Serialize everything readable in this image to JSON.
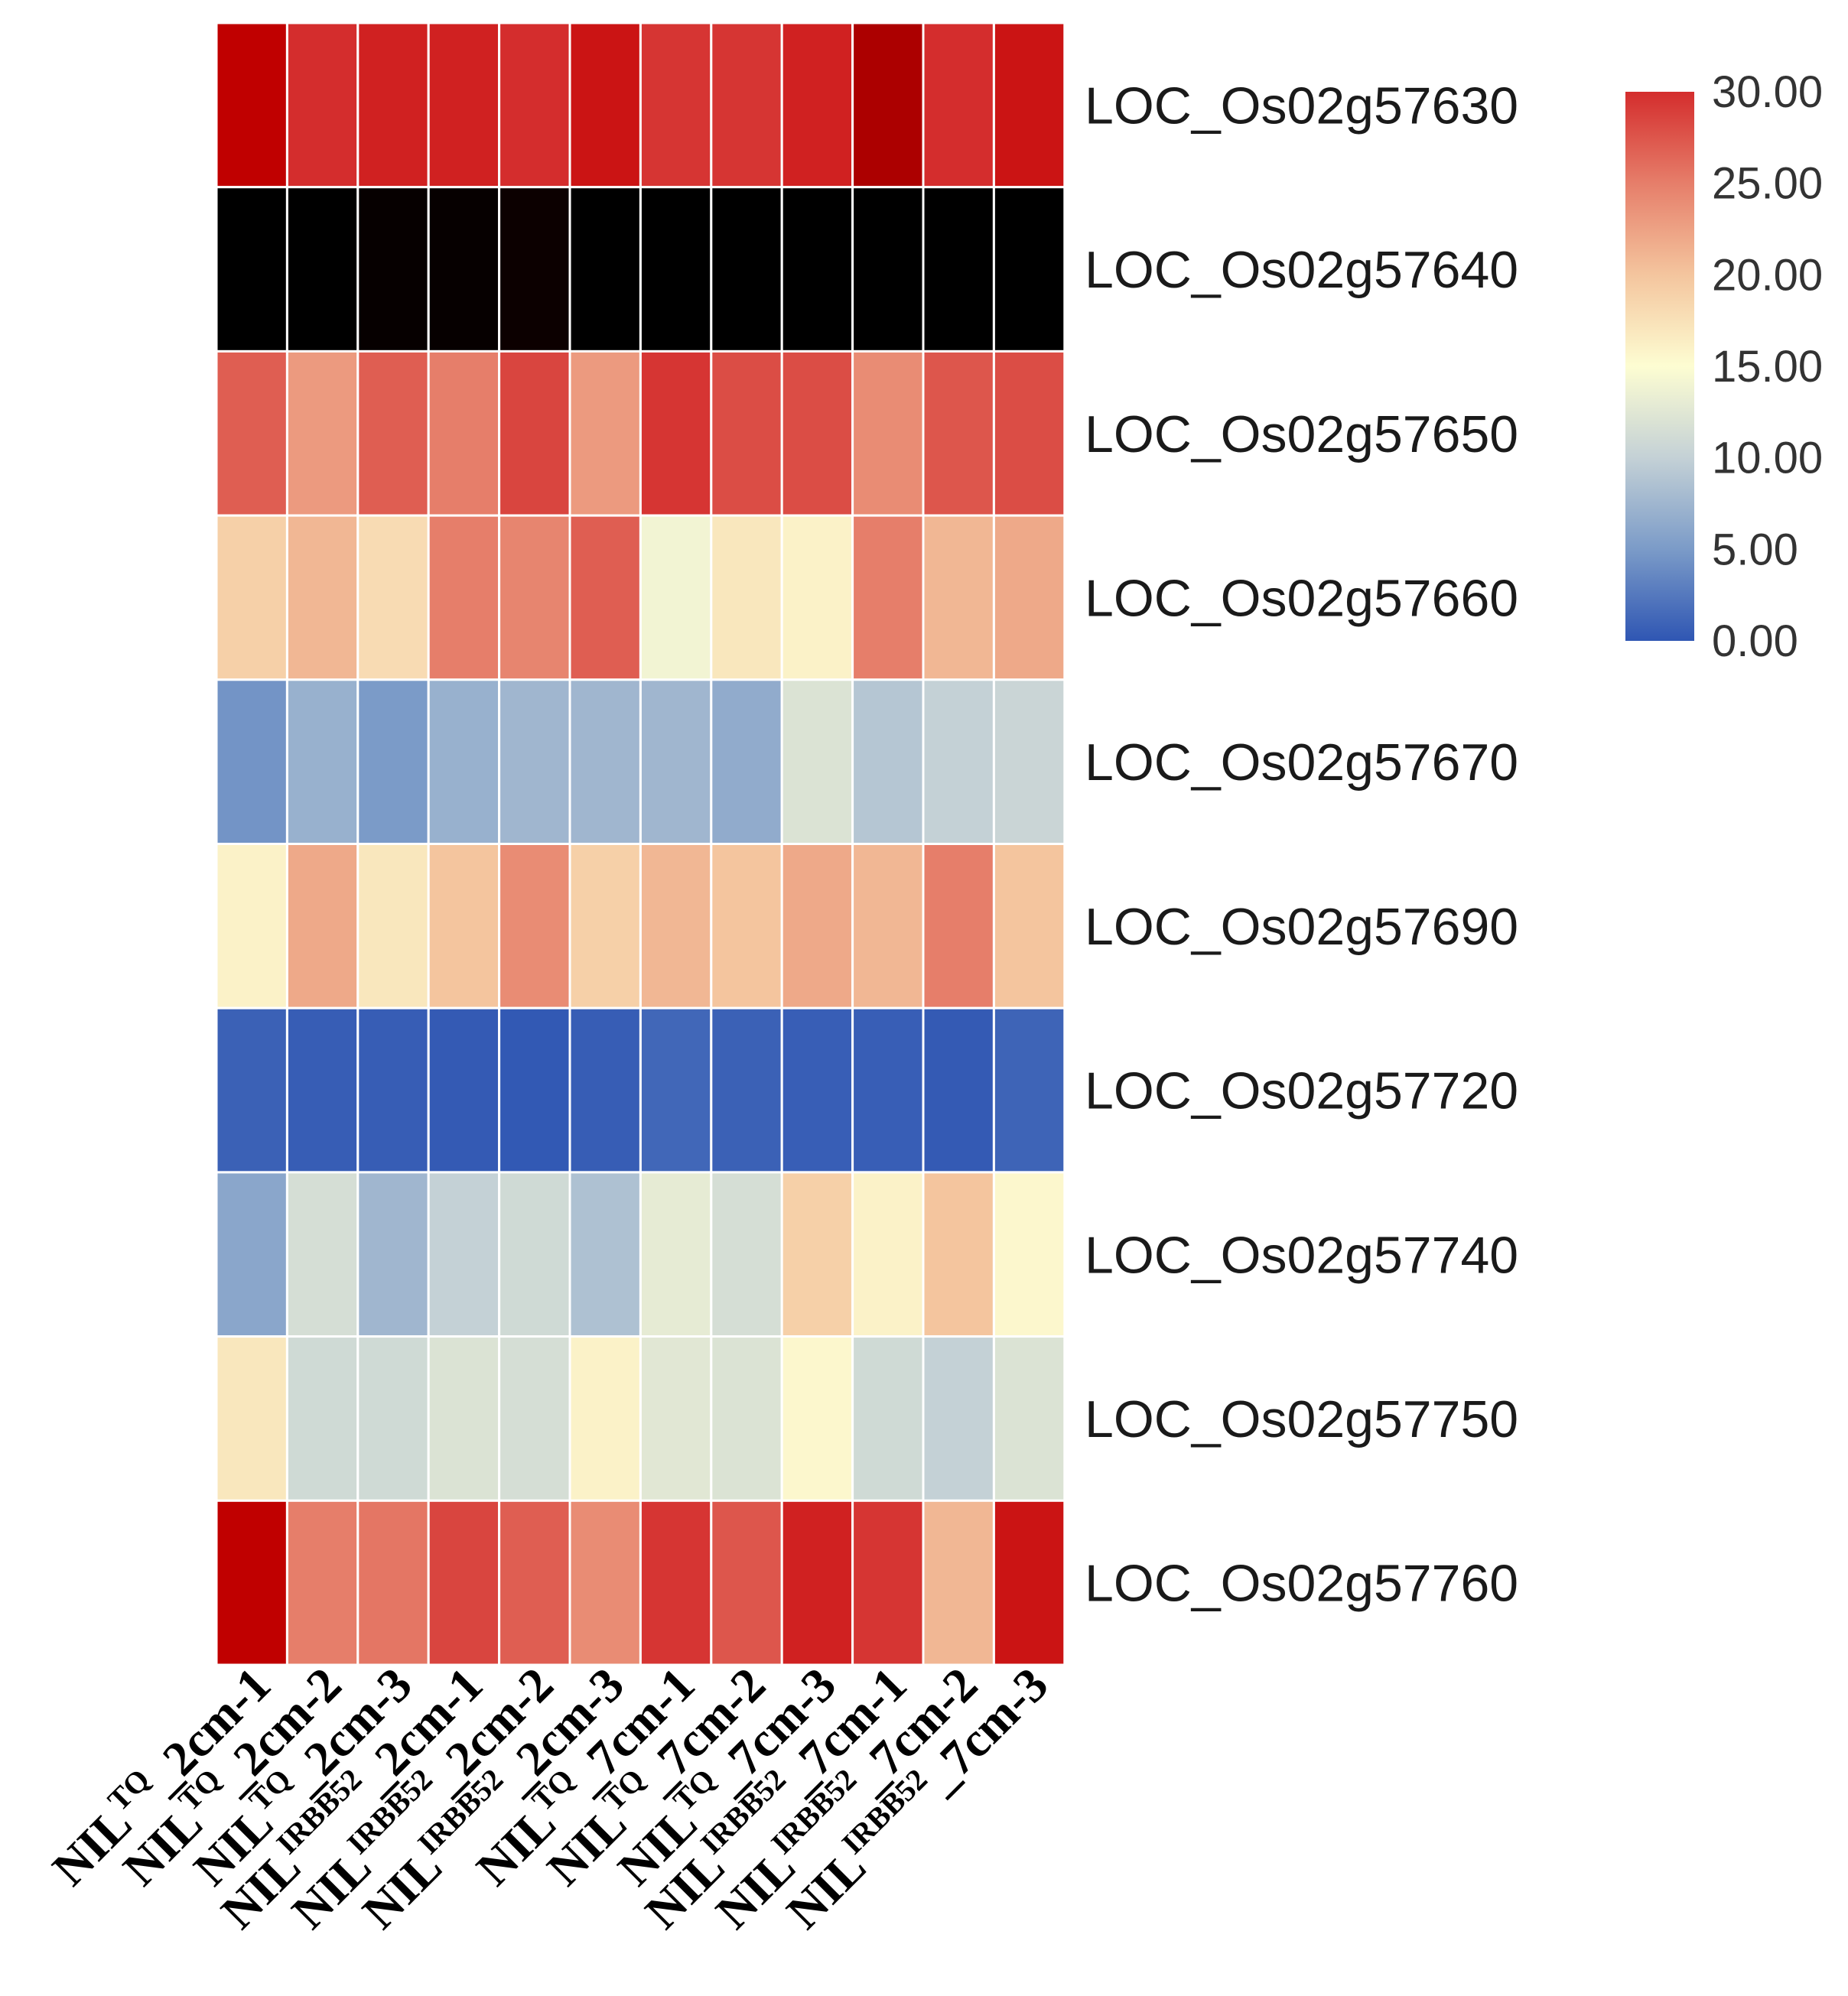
{
  "chart_data": {
    "type": "heatmap",
    "title": "",
    "rows": [
      "LOC_Os02g57630",
      "LOC_Os02g57640",
      "LOC_Os02g57650",
      "LOC_Os02g57660",
      "LOC_Os02g57670",
      "LOC_Os02g57690",
      "LOC_Os02g57720",
      "LOC_Os02g57740",
      "LOC_Os02g57750",
      "LOC_Os02g57760"
    ],
    "columns": [
      {
        "base": "NIL",
        "sup": "TQ",
        "suffix": "_2cm-1"
      },
      {
        "base": "NIL",
        "sup": "TQ",
        "suffix": "_2cm-2"
      },
      {
        "base": "NIL",
        "sup": "TQ",
        "suffix": "_2cm-3"
      },
      {
        "base": "NIL",
        "sup": "IRBB52",
        "suffix": "_2cm-1"
      },
      {
        "base": "NIL",
        "sup": "IRBB52",
        "suffix": "_2cm-2"
      },
      {
        "base": "NIL",
        "sup": "IRBB52",
        "suffix": "_2cm-3"
      },
      {
        "base": "NIL",
        "sup": "TQ",
        "suffix": "_7cm-1"
      },
      {
        "base": "NIL",
        "sup": "TQ",
        "suffix": "_7cm-2"
      },
      {
        "base": "NIL",
        "sup": "TQ",
        "suffix": "_7cm-3"
      },
      {
        "base": "NIL",
        "sup": "IRBB52",
        "suffix": "_7cm-1"
      },
      {
        "base": "NIL",
        "sup": "IRBB52",
        "suffix": "_7cm-2"
      },
      {
        "base": "NIL",
        "sup": "IRBB52",
        "suffix": "_7cm-3"
      }
    ],
    "values": [
      [
        34,
        30,
        31,
        31,
        30,
        32,
        29.5,
        29.5,
        31,
        36,
        30,
        32
      ],
      [
        48,
        48,
        47,
        47,
        46,
        48,
        48,
        48,
        48,
        48,
        48,
        48
      ],
      [
        27,
        23,
        27,
        25,
        28.5,
        23,
        29.5,
        28,
        28,
        24,
        27.5,
        28
      ],
      [
        19,
        21,
        18,
        25,
        24.5,
        27,
        14,
        17,
        16,
        25,
        21,
        22
      ],
      [
        4.5,
        7,
        5,
        7,
        7.5,
        7.5,
        7.5,
        6.5,
        12,
        9,
        10,
        10.5
      ],
      [
        16,
        22,
        17,
        20,
        24,
        19,
        21,
        20,
        22,
        21,
        25,
        20
      ],
      [
        0.8,
        0.5,
        0.5,
        0.3,
        0.2,
        0.5,
        1.2,
        0.8,
        0.6,
        0.6,
        0.3,
        1.0
      ],
      [
        6,
        11.5,
        7.5,
        10,
        11,
        8.5,
        13,
        11.5,
        19,
        16,
        20,
        15.5
      ],
      [
        17,
        11,
        11,
        12,
        11.5,
        16,
        12.5,
        12,
        15.5,
        11,
        10,
        12
      ],
      [
        34,
        25,
        25.5,
        28.5,
        27,
        24,
        29.5,
        27.5,
        31,
        29.5,
        21,
        32
      ]
    ],
    "colorbar": {
      "min": 0,
      "max": 30,
      "ticks": [
        "30.00",
        "25.00",
        "20.00",
        "15.00",
        "10.00",
        "5.00",
        "0.00"
      ],
      "colors": [
        "#2f56b3",
        "#7b9bc8",
        "#c4d1d6",
        "#fdfdd2",
        "#f4c59e",
        "#e67e6a",
        "#d42d2d"
      ],
      "above_max": [
        "#d42d2d",
        "#c40000",
        "#a00000",
        "#6e0000",
        "#160000",
        "#000000"
      ],
      "above_max_ceiling": 48
    }
  }
}
